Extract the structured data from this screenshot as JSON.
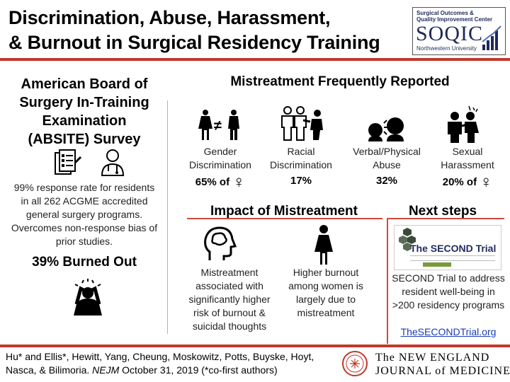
{
  "header": {
    "title_line1": "Discrimination, Abuse, Harassment,",
    "title_line2": "& Burnout in Surgical Residency Training",
    "logo": {
      "line1": "Surgical Outcomes &",
      "line2": "Quality Improvement Center",
      "acronym": "SOQIC",
      "university": "Northwestern University"
    }
  },
  "left": {
    "survey_title": "American Board of Surgery In-Training Examination (ABSITE) Survey",
    "survey_text": "99% response rate for residents in all 262 ACGME accredited general surgery programs. Overcomes non-response bias of prior studies.",
    "burnout": "39% Burned Out"
  },
  "mistreatment": {
    "heading": "Mistreatment Frequently Reported",
    "items": [
      {
        "label_line1": "Gender",
        "label_line2": "Discrimination",
        "stat": "65% of",
        "female_symbol": true,
        "icon": "gender-inequality-icon"
      },
      {
        "label_line1": "Racial",
        "label_line2": "Discrimination",
        "stat": "17%",
        "female_symbol": false,
        "icon": "racial-discrimination-icon"
      },
      {
        "label_line1": "Verbal/Physical",
        "label_line2": "Abuse",
        "stat": "32%",
        "female_symbol": false,
        "icon": "verbal-abuse-icon"
      },
      {
        "label_line1": "Sexual",
        "label_line2": "Harassment",
        "stat": "20% of",
        "female_symbol": true,
        "icon": "harassment-icon"
      }
    ],
    "female_glyph": "♀"
  },
  "impact": {
    "heading": "Impact of Mistreatment",
    "left_text": "Mistreatment associated with significantly higher risk of burnout & suicidal thoughts",
    "right_text": "Higher burnout among women is largely due to mistreatment"
  },
  "next_steps": {
    "heading": "Next steps",
    "trial_title": "The SECOND Trial",
    "text": "SECOND Trial to address resident well-being in >200 residency programs",
    "link": "TheSECONDTrial.org"
  },
  "footer": {
    "citation_line1": "Hu* and Ellis*, Hewitt, Yang, Cheung, Moskowitz, Potts, Buyske, Hoyt,",
    "citation_line2_pre": "Nasca, & Bilimoria. ",
    "journal_abbrev": "NEJM",
    "citation_line2_post": " October 31, 2019  (*co-first authors)",
    "journal_line1": "The NEW ENGLAND",
    "journal_line2": "JOURNAL of MEDICINE"
  },
  "colors": {
    "accent_red": "#c0392b",
    "navy": "#1f2a5c",
    "link_blue": "#1a3db5",
    "trial_green": "#7a9a3a"
  }
}
